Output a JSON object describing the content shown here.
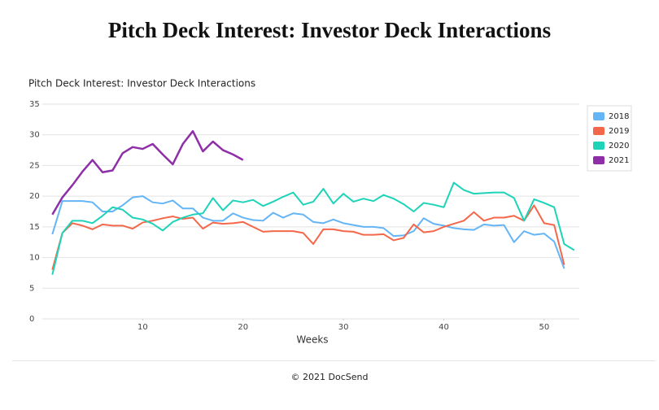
{
  "title": "Pitch Deck Interest: Investor Deck Interactions",
  "footer": "© 2021 DocSend",
  "chart_data": {
    "type": "line",
    "title": "Pitch Deck Interest: Investor Deck Interactions",
    "x_label": "Weeks",
    "x": [
      1,
      2,
      3,
      4,
      5,
      6,
      7,
      8,
      9,
      10,
      11,
      12,
      13,
      14,
      15,
      16,
      17,
      18,
      19,
      20,
      21,
      22,
      23,
      24,
      25,
      26,
      27,
      28,
      29,
      30,
      31,
      32,
      33,
      34,
      35,
      36,
      37,
      38,
      39,
      40,
      41,
      42,
      43,
      44,
      45,
      46,
      47,
      48,
      49,
      50,
      51,
      52,
      53
    ],
    "xlim": [
      0,
      53.5
    ],
    "xticks": [
      10,
      20,
      30,
      40,
      50
    ],
    "ylim": [
      0,
      35
    ],
    "yticks": [
      0,
      5,
      10,
      15,
      20,
      25,
      30,
      35
    ],
    "grid": true,
    "legend": "right",
    "series": [
      {
        "name": "2018",
        "color": "#64b5f6",
        "values": [
          13.8,
          19.2,
          19.2,
          19.2,
          19.0,
          17.5,
          17.5,
          18.5,
          19.8,
          20.0,
          19.0,
          18.8,
          19.3,
          18.0,
          18.0,
          16.5,
          16.0,
          16.0,
          17.2,
          16.5,
          16.1,
          16.0,
          17.3,
          16.5,
          17.2,
          17.0,
          15.8,
          15.6,
          16.2,
          15.6,
          15.3,
          15.0,
          15.0,
          14.8,
          13.5,
          13.6,
          14.3,
          16.4,
          15.5,
          15.2,
          14.8,
          14.6,
          14.5,
          15.4,
          15.2,
          15.3,
          12.5,
          14.3,
          13.7,
          13.9,
          12.6,
          8.2,
          null
        ]
      },
      {
        "name": "2019",
        "color": "#f4674a",
        "values": [
          8.0,
          14.0,
          15.6,
          15.2,
          14.6,
          15.4,
          15.2,
          15.2,
          14.7,
          15.7,
          16.0,
          16.4,
          16.7,
          16.3,
          16.5,
          14.7,
          15.7,
          15.5,
          15.6,
          15.8,
          15.0,
          14.2,
          14.3,
          14.3,
          14.3,
          14.0,
          12.2,
          14.6,
          14.6,
          14.3,
          14.2,
          13.7,
          13.7,
          13.8,
          12.8,
          13.2,
          15.4,
          14.1,
          14.3,
          15.0,
          15.5,
          16.0,
          17.4,
          16.0,
          16.5,
          16.5,
          16.8,
          16.0,
          18.5,
          15.6,
          15.3,
          8.8,
          null
        ]
      },
      {
        "name": "2020",
        "color": "#1dd3b8",
        "values": [
          7.2,
          14.0,
          16.0,
          16.0,
          15.6,
          16.8,
          18.2,
          17.8,
          16.5,
          16.2,
          15.5,
          14.4,
          15.8,
          16.5,
          17.0,
          17.2,
          19.7,
          17.7,
          19.3,
          19.0,
          19.4,
          18.4,
          19.1,
          19.9,
          20.6,
          18.6,
          19.1,
          21.2,
          18.8,
          20.4,
          19.1,
          19.6,
          19.2,
          20.2,
          19.6,
          18.7,
          17.5,
          18.9,
          18.6,
          18.2,
          22.2,
          21.0,
          20.4,
          20.5,
          20.6,
          20.6,
          19.7,
          16.0,
          19.5,
          18.9,
          18.2,
          12.2,
          11.2
        ]
      },
      {
        "name": "2021",
        "color": "#8e2fa8",
        "values": [
          17.0,
          19.8,
          21.8,
          24.0,
          25.9,
          23.9,
          24.2,
          27.0,
          28.0,
          27.7,
          28.5,
          26.8,
          25.2,
          28.5,
          30.6,
          27.3,
          28.9,
          27.5,
          26.8,
          25.9,
          null,
          null,
          null,
          null,
          null,
          null,
          null,
          null,
          null,
          null,
          null,
          null,
          null,
          null,
          null,
          null,
          null,
          null,
          null,
          null,
          null,
          null,
          null,
          null,
          null,
          null,
          null,
          null,
          null,
          null,
          null,
          null,
          null
        ]
      }
    ]
  }
}
